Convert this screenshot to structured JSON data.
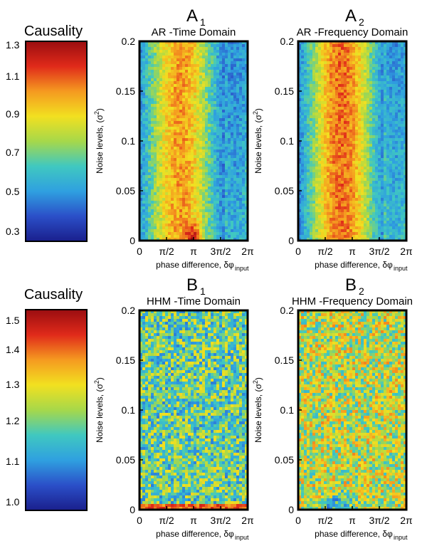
{
  "chart_data": [
    {
      "type": "heatmap",
      "panel": "A1",
      "panel_letter": "A",
      "panel_index": "1",
      "title": "AR -Time Domain",
      "xlabel": "phase difference, δφ",
      "xlabel_sub": "input",
      "ylabel": "Noise levels, (σ",
      "ylabel_sup": "2",
      "ylabel_end": ")",
      "x_ticks": [
        "0",
        "π/2",
        "π",
        "3π/2",
        "2π"
      ],
      "y_ticks": [
        "0",
        "0.05",
        "0.1",
        "0.15",
        "0.2"
      ],
      "xlim": [
        0,
        6.2832
      ],
      "ylim": [
        0,
        0.2
      ],
      "colorbar": "causality_top",
      "pattern": "ar_time"
    },
    {
      "type": "heatmap",
      "panel": "A2",
      "panel_letter": "A",
      "panel_index": "2",
      "title": "AR -Frequency Domain",
      "xlabel": "phase difference, δφ",
      "xlabel_sub": "input",
      "ylabel": "Noise levels, (σ",
      "ylabel_sup": "2",
      "ylabel_end": ")",
      "x_ticks": [
        "0",
        "π/2",
        "π",
        "3π/2",
        "2π"
      ],
      "y_ticks": [
        "0",
        "0.05",
        "0.1",
        "0.15",
        "0.2"
      ],
      "xlim": [
        0,
        6.2832
      ],
      "ylim": [
        0,
        0.2
      ],
      "colorbar": "causality_top",
      "pattern": "ar_freq"
    },
    {
      "type": "heatmap",
      "panel": "B1",
      "panel_letter": "B",
      "panel_index": "1",
      "title": "HHM -Time Domain",
      "xlabel": "phase difference, δφ",
      "xlabel_sub": "input",
      "ylabel": "Noise levels, (σ",
      "ylabel_sup": "2",
      "ylabel_end": ")",
      "x_ticks": [
        "0",
        "π/2",
        "π",
        "3π/2",
        "2π"
      ],
      "y_ticks": [
        "0",
        "0.05",
        "0.1",
        "0.15",
        "0.2"
      ],
      "xlim": [
        0,
        6.2832
      ],
      "ylim": [
        0,
        0.2
      ],
      "colorbar": "causality_bottom",
      "pattern": "hhm_time"
    },
    {
      "type": "heatmap",
      "panel": "B2",
      "panel_letter": "B",
      "panel_index": "2",
      "title": "HHM -Frequency Domain",
      "xlabel": "phase difference, δφ",
      "xlabel_sub": "input",
      "ylabel": "Noise levels, (σ",
      "ylabel_sup": "2",
      "ylabel_end": ")",
      "x_ticks": [
        "0",
        "π/2",
        "π",
        "3π/2",
        "2π"
      ],
      "y_ticks": [
        "0",
        "0.05",
        "0.1",
        "0.15",
        "0.2"
      ],
      "xlim": [
        0,
        6.2832
      ],
      "ylim": [
        0,
        0.2
      ],
      "colorbar": "causality_bottom",
      "pattern": "hhm_freq"
    }
  ],
  "colorbars": {
    "causality_top": {
      "title": "Causality",
      "ticks": [
        "1.3",
        "1.1",
        "0.9",
        "0.7",
        "0.5",
        "0.3"
      ],
      "range": [
        0.25,
        1.35
      ]
    },
    "causality_bottom": {
      "title": "Causality",
      "ticks": [
        "1.5",
        "1.4",
        "1.3",
        "1.2",
        "1.1",
        "1.0"
      ],
      "range": [
        0.97,
        1.55
      ]
    }
  },
  "colormap": [
    "#1a1f8c",
    "#2b4fc8",
    "#2fa0e0",
    "#40c8c0",
    "#a6d84a",
    "#f2e020",
    "#f59a20",
    "#e02a1a",
    "#9a0d10"
  ]
}
